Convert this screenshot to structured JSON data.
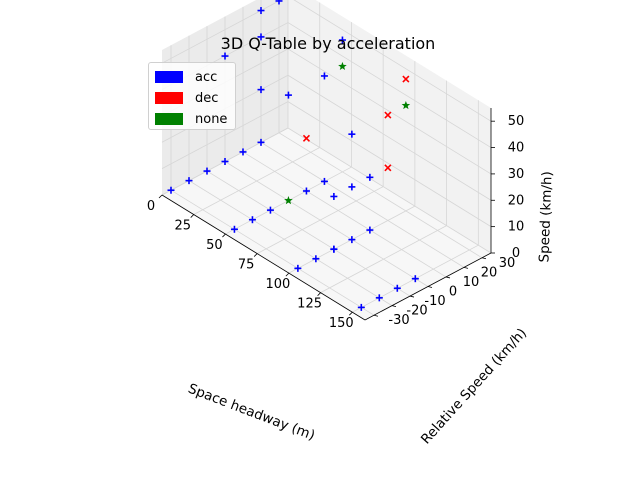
{
  "chart_data": {
    "type": "scatter3d",
    "title": "3D Q-Table by acceleration",
    "xlabel": "Space headway (m)",
    "ylabel": "Relative Speed (km/h)",
    "zlabel": "Speed (km/h)",
    "xlim": [
      0,
      160
    ],
    "ylim": [
      -35,
      35
    ],
    "zlim": [
      0,
      55
    ],
    "xticks": [
      0,
      25,
      50,
      75,
      100,
      125,
      150
    ],
    "yticks": [
      -30,
      -20,
      -10,
      0,
      10,
      20,
      30
    ],
    "zticks": [
      0,
      10,
      20,
      30,
      40,
      50
    ],
    "legend": [
      {
        "key": "acc",
        "label": "acc",
        "color": "#0000ff",
        "marker": "+"
      },
      {
        "key": "dec",
        "label": "dec",
        "color": "#ff0000",
        "marker": "x"
      },
      {
        "key": "none",
        "label": "none",
        "color": "#008000",
        "marker": "*"
      }
    ],
    "points": [
      {
        "x": 150,
        "y": -30,
        "z": 0,
        "cls": "acc"
      },
      {
        "x": 150,
        "y": -20,
        "z": 0,
        "cls": "acc"
      },
      {
        "x": 150,
        "y": -10,
        "z": 0,
        "cls": "acc"
      },
      {
        "x": 150,
        "y": 0,
        "z": 0,
        "cls": "acc"
      },
      {
        "x": 100,
        "y": -30,
        "z": 0,
        "cls": "acc"
      },
      {
        "x": 100,
        "y": -20,
        "z": 0,
        "cls": "acc"
      },
      {
        "x": 100,
        "y": -10,
        "z": 0,
        "cls": "acc"
      },
      {
        "x": 100,
        "y": 0,
        "z": 0,
        "cls": "acc"
      },
      {
        "x": 100,
        "y": 10,
        "z": 0,
        "cls": "acc"
      },
      {
        "x": 50,
        "y": -30,
        "z": 0,
        "cls": "acc"
      },
      {
        "x": 50,
        "y": -20,
        "z": 0,
        "cls": "acc"
      },
      {
        "x": 50,
        "y": -10,
        "z": 0,
        "cls": "acc"
      },
      {
        "x": 50,
        "y": 0,
        "z": 0,
        "cls": "none"
      },
      {
        "x": 50,
        "y": 10,
        "z": 0,
        "cls": "acc"
      },
      {
        "x": 50,
        "y": 20,
        "z": 0,
        "cls": "acc"
      },
      {
        "x": 0,
        "y": -30,
        "z": 0,
        "cls": "acc"
      },
      {
        "x": 0,
        "y": -20,
        "z": 0,
        "cls": "acc"
      },
      {
        "x": 0,
        "y": -10,
        "z": 0,
        "cls": "acc"
      },
      {
        "x": 0,
        "y": 0,
        "z": 0,
        "cls": "acc"
      },
      {
        "x": 0,
        "y": 10,
        "z": 0,
        "cls": "acc"
      },
      {
        "x": 0,
        "y": 20,
        "z": 0,
        "cls": "acc"
      },
      {
        "x": 100,
        "y": 0,
        "z": 20,
        "cls": "acc"
      },
      {
        "x": 100,
        "y": 10,
        "z": 20,
        "cls": "acc"
      },
      {
        "x": 100,
        "y": 20,
        "z": 20,
        "cls": "dec"
      },
      {
        "x": 50,
        "y": 10,
        "z": 20,
        "cls": "dec"
      },
      {
        "x": 0,
        "y": 20,
        "z": 20,
        "cls": "acc"
      },
      {
        "x": 100,
        "y": 0,
        "z": 40,
        "cls": "acc"
      },
      {
        "x": 100,
        "y": 20,
        "z": 40,
        "cls": "dec"
      },
      {
        "x": 100,
        "y": 30,
        "z": 40,
        "cls": "none"
      },
      {
        "x": 100,
        "y": 30,
        "z": 50,
        "cls": "dec"
      },
      {
        "x": 50,
        "y": 20,
        "z": 40,
        "cls": "acc"
      },
      {
        "x": 50,
        "y": 30,
        "z": 40,
        "cls": "none"
      },
      {
        "x": 50,
        "y": 30,
        "z": 50,
        "cls": "acc"
      },
      {
        "x": 0,
        "y": 30,
        "z": 50,
        "cls": "acc"
      },
      {
        "x": 0,
        "y": 20,
        "z": 50,
        "cls": "acc"
      },
      {
        "x": 0,
        "y": 20,
        "z": 40,
        "cls": "acc"
      },
      {
        "x": 0,
        "y": 0,
        "z": 40,
        "cls": "acc"
      },
      {
        "x": 50,
        "y": 0,
        "z": 40,
        "cls": "acc"
      },
      {
        "x": 100,
        "y": -10,
        "z": 20,
        "cls": "acc"
      },
      {
        "x": 100,
        "y": -10,
        "z": 0,
        "cls": "acc"
      }
    ]
  }
}
